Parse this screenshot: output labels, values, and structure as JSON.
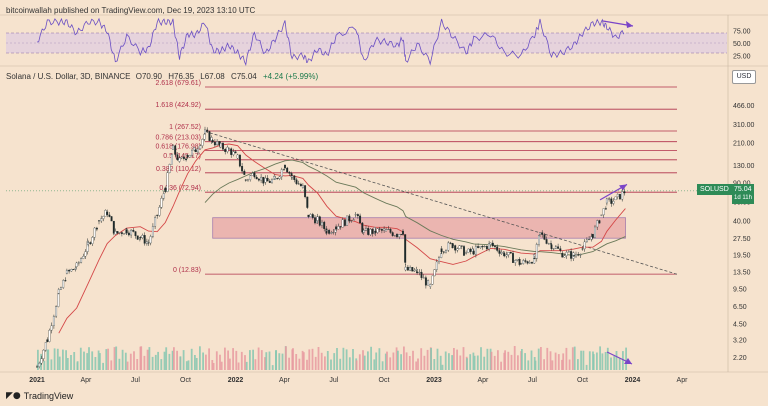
{
  "header": {
    "publisher": "bitcoinwallah published on TradingView.com, Dec 19, 2023 13:10 UTC",
    "symbol": "Solana / U.S. Dollar, 3D, BINANCE",
    "ohlc": [
      "O70.90",
      "H76.35",
      "L67.08",
      "C75.04",
      "+4.24 (+5.99%)"
    ]
  },
  "currency_button": "USD",
  "last_price": {
    "symbol": "SOLUSD",
    "price": "75.04",
    "countdown": "1d 11h"
  },
  "brand": "TradingView",
  "colors": {
    "background": "#f6e3ce",
    "fib": "#b0304a",
    "zone_fill": "#e8a6a6",
    "zone_border": "#8a5aa0",
    "candle": "#1f2a2a",
    "ma_short": "#d44848",
    "ma_long": "#6b7a5a",
    "rsi": "#6a4fc4",
    "rsi_band": "#d8c6e8",
    "arrow": "#7a44c8",
    "volume_up": "#86c7b0",
    "volume_down": "#e79aa0"
  },
  "chart_data": {
    "type": "line",
    "x_ticks": [
      "2021",
      "Apr",
      "Jul",
      "Oct",
      "2022",
      "Apr",
      "Jul",
      "Oct",
      "2023",
      "Apr",
      "Jul",
      "Oct",
      "2024",
      "Apr"
    ],
    "y_scale": "log",
    "y_ticks": [
      "466.00",
      "310.00",
      "210.00",
      "130.00",
      "90.00",
      "60.00",
      "40.00",
      "27.50",
      "19.50",
      "13.50",
      "9.50",
      "6.50",
      "4.50",
      "3.20",
      "2.20"
    ],
    "rsi_ticks": [
      "75.00",
      "50.00",
      "25.00"
    ],
    "fib_levels": [
      {
        "label": "2.618 (679.61)",
        "value": 679.61
      },
      {
        "label": "1.618 (424.92)",
        "value": 424.92
      },
      {
        "label": "1 (267.52)",
        "value": 267.52
      },
      {
        "label": "0.786 (213.03)",
        "value": 213.03
      },
      {
        "label": "0.618 (176.98)",
        "value": 176.98
      },
      {
        "label": "0.5 (145.17)",
        "value": 145.17
      },
      {
        "label": "0.382 (110.12)",
        "value": 110.12
      },
      {
        "label": "0.236 (72.94)",
        "value": 72.94
      },
      {
        "label": "0 (12.83)",
        "value": 12.83
      }
    ],
    "zone": {
      "low": 27.5,
      "high": 42.5,
      "from": "2021-11",
      "to": "2023-12"
    },
    "price_series": [
      [
        "2021-01-01",
        1.8
      ],
      [
        "2021-01-20",
        3.2
      ],
      [
        "2021-02-10",
        8.5
      ],
      [
        "2021-02-25",
        13
      ],
      [
        "2021-03-15",
        15
      ],
      [
        "2021-04-05",
        24
      ],
      [
        "2021-04-25",
        40
      ],
      [
        "2021-05-10",
        48
      ],
      [
        "2021-05-25",
        30
      ],
      [
        "2021-06-15",
        33
      ],
      [
        "2021-07-10",
        28
      ],
      [
        "2021-07-25",
        25
      ],
      [
        "2021-08-10",
        45
      ],
      [
        "2021-08-25",
        80
      ],
      [
        "2021-09-08",
        180
      ],
      [
        "2021-09-20",
        140
      ],
      [
        "2021-10-05",
        160
      ],
      [
        "2021-10-20",
        180
      ],
      [
        "2021-11-06",
        255
      ],
      [
        "2021-11-20",
        220
      ],
      [
        "2021-12-05",
        190
      ],
      [
        "2021-12-20",
        180
      ],
      [
        "2022-01-05",
        150
      ],
      [
        "2022-01-20",
        95
      ],
      [
        "2022-02-05",
        110
      ],
      [
        "2022-02-25",
        90
      ],
      [
        "2022-03-15",
        95
      ],
      [
        "2022-04-02",
        130
      ],
      [
        "2022-04-15",
        100
      ],
      [
        "2022-05-05",
        80
      ],
      [
        "2022-05-15",
        45
      ],
      [
        "2022-06-01",
        40
      ],
      [
        "2022-06-18",
        32
      ],
      [
        "2022-07-05",
        35
      ],
      [
        "2022-08-10",
        45
      ],
      [
        "2022-08-25",
        31
      ],
      [
        "2022-09-15",
        32
      ],
      [
        "2022-10-05",
        32
      ],
      [
        "2022-10-25",
        30
      ],
      [
        "2022-11-05",
        32
      ],
      [
        "2022-11-10",
        14
      ],
      [
        "2022-12-01",
        13.5
      ],
      [
        "2022-12-25",
        9.8
      ],
      [
        "2023-01-15",
        22
      ],
      [
        "2023-02-05",
        24
      ],
      [
        "2023-03-01",
        20
      ],
      [
        "2023-03-15",
        21
      ],
      [
        "2023-04-15",
        24
      ],
      [
        "2023-05-10",
        20
      ],
      [
        "2023-06-10",
        16
      ],
      [
        "2023-07-05",
        18
      ],
      [
        "2023-07-15",
        30
      ],
      [
        "2023-08-05",
        24
      ],
      [
        "2023-08-25",
        20
      ],
      [
        "2023-09-15",
        19
      ],
      [
        "2023-10-01",
        22
      ],
      [
        "2023-10-20",
        30
      ],
      [
        "2023-11-05",
        45
      ],
      [
        "2023-11-15",
        58
      ],
      [
        "2023-12-01",
        62
      ],
      [
        "2023-12-19",
        75.04
      ]
    ]
  }
}
